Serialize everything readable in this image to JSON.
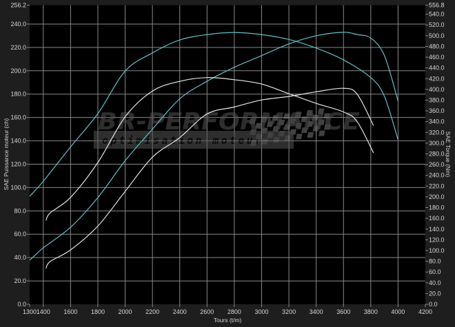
{
  "chart_data": {
    "type": "line",
    "xlabel": "Tours (t/m)",
    "ylabel": "SAE Puissance moteur (ch)",
    "y2label": "SAE Torque (Nm)",
    "xlim": [
      1300,
      4200
    ],
    "ylim": [
      0,
      256.2
    ],
    "y2lim": [
      0,
      556.8
    ],
    "xticks": [
      1300,
      1400,
      1600,
      1800,
      2000,
      2200,
      2400,
      2600,
      2800,
      3000,
      3200,
      3400,
      3600,
      3800,
      4000,
      4200
    ],
    "yticks": [
      "0.0",
      "20.0",
      "40.0",
      "60.0",
      "80.0",
      "100.0",
      "120.0",
      "140.0",
      "160.0",
      "180.0",
      "200.0",
      "220.0",
      "240.0",
      "256.2"
    ],
    "y2ticks": [
      "0.0",
      "20.0",
      "40.0",
      "60.0",
      "80.0",
      "100.0",
      "120.0",
      "140.0",
      "160.0",
      "180.0",
      "200.0",
      "220.0",
      "240.0",
      "260.0",
      "280.0",
      "300.0",
      "320.0",
      "340.0",
      "360.0",
      "380.0",
      "400.0",
      "420.0",
      "440.0",
      "460.0",
      "480.0",
      "500.0",
      "520.0",
      "540.0",
      "556.8"
    ],
    "grid": true,
    "colors": {
      "background": "#1e1e1e",
      "plot": "#000000",
      "grid": "#8a8a8a",
      "tuned": "#5ec4c4",
      "stock": "#e6e6e6"
    },
    "series": [
      {
        "axis": "left",
        "color": "#5ec4c4",
        "x": [
          1300,
          1400,
          1600,
          1800,
          2000,
          2200,
          2400,
          2600,
          2800,
          3000,
          3200,
          3400,
          3600,
          3700,
          3800,
          3900,
          4000
        ],
        "y": [
          37.7,
          48.3,
          66,
          91.4,
          123,
          150,
          176,
          191,
          203,
          213,
          223,
          230,
          233,
          231,
          228,
          213,
          174
        ]
      },
      {
        "axis": "right",
        "color": "#5ec4c4",
        "x": [
          1300,
          1400,
          1600,
          1800,
          2000,
          2200,
          2400,
          2600,
          2800,
          3000,
          3200,
          3400,
          3600,
          3800,
          3900,
          4000
        ],
        "y": [
          201,
          229,
          293,
          355,
          434,
          468,
          492,
          502,
          506,
          502,
          493,
          477,
          455,
          422,
          387,
          306
        ]
      },
      {
        "axis": "left",
        "color": "#e6e6e6",
        "x": [
          1420,
          1450,
          1600,
          1800,
          2000,
          2200,
          2400,
          2600,
          2800,
          3000,
          3200,
          3400,
          3600,
          3700,
          3820
        ],
        "y": [
          30.7,
          36.6,
          46.6,
          67,
          96.7,
          126,
          142.7,
          163,
          169,
          175,
          178,
          182,
          185,
          180,
          153
        ]
      },
      {
        "axis": "right",
        "color": "#e6e6e6",
        "x": [
          1420,
          1450,
          1600,
          1800,
          2000,
          2200,
          2400,
          2600,
          2800,
          3000,
          3200,
          3400,
          3600,
          3700,
          3820
        ],
        "y": [
          156,
          170,
          199,
          264,
          349,
          397,
          415,
          422,
          418,
          410,
          392,
          374,
          358,
          340,
          282
        ]
      }
    ]
  },
  "watermark": {
    "logo": "BR-PERFORMANCE",
    "tagline": "optimisation moteur"
  }
}
